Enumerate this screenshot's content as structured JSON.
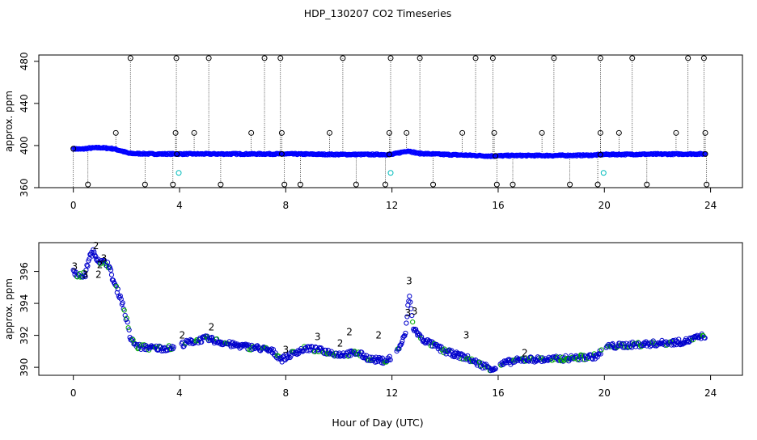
{
  "chart_data": [
    {
      "type": "scatter",
      "title": "HDP_130207  CO2 Timeseries",
      "ylabel": "approx. ppm",
      "xlabel": "",
      "xlim": [
        -1.3,
        25.2
      ],
      "ylim": [
        360,
        486
      ],
      "x_ticks": [
        0,
        4,
        8,
        12,
        16,
        20,
        24
      ],
      "y_ticks": [
        360,
        400,
        440,
        480
      ],
      "colors": {
        "raw": "#000000",
        "corrected": "#0000ff",
        "flagged": "#00bbbb"
      },
      "baseline_trace": [
        {
          "x": 0.0,
          "y": 397
        },
        {
          "x": 0.3,
          "y": 396.5
        },
        {
          "x": 0.6,
          "y": 397.5
        },
        {
          "x": 1.0,
          "y": 398
        },
        {
          "x": 1.5,
          "y": 397
        },
        {
          "x": 1.8,
          "y": 395
        },
        {
          "x": 2.1,
          "y": 392.5
        },
        {
          "x": 3.0,
          "y": 392
        },
        {
          "x": 4.0,
          "y": 392
        },
        {
          "x": 6.0,
          "y": 392
        },
        {
          "x": 8.0,
          "y": 392
        },
        {
          "x": 10.0,
          "y": 391.5
        },
        {
          "x": 12.0,
          "y": 391.5
        },
        {
          "x": 12.6,
          "y": 395
        },
        {
          "x": 13.0,
          "y": 392.5
        },
        {
          "x": 14.0,
          "y": 391.5
        },
        {
          "x": 15.2,
          "y": 390.5
        },
        {
          "x": 15.7,
          "y": 390
        },
        {
          "x": 16.5,
          "y": 390.5
        },
        {
          "x": 18.0,
          "y": 390.5
        },
        {
          "x": 19.5,
          "y": 390.8
        },
        {
          "x": 20.0,
          "y": 391.5
        },
        {
          "x": 22.0,
          "y": 391.8
        },
        {
          "x": 23.8,
          "y": 392
        }
      ],
      "high_spikes": [
        2.15,
        3.88,
        5.1,
        7.2,
        7.8,
        10.15,
        11.95,
        13.05,
        15.15,
        15.8,
        18.1,
        19.85,
        21.05,
        23.15,
        23.75
      ],
      "mid_spikes": [
        1.6,
        3.85,
        4.55,
        6.7,
        7.85,
        9.65,
        11.9,
        12.55,
        14.65,
        15.85,
        17.65,
        19.85,
        20.55,
        22.7,
        23.8
      ],
      "low_spikes": [
        0.55,
        2.7,
        3.75,
        5.55,
        7.95,
        8.55,
        10.65,
        11.75,
        13.55,
        15.95,
        16.55,
        18.7,
        19.75,
        21.6,
        23.85
      ],
      "flagged_points": [
        {
          "x": 3.97,
          "y": 374
        },
        {
          "x": 11.95,
          "y": 374
        },
        {
          "x": 19.97,
          "y": 374
        }
      ]
    },
    {
      "type": "scatter",
      "title": "",
      "ylabel": "approx. ppm",
      "xlabel": "Hour of Day (UTC)",
      "xlim": [
        -1.3,
        25.2
      ],
      "ylim": [
        389.5,
        397.8
      ],
      "x_ticks": [
        0,
        4,
        8,
        12,
        16,
        20,
        24
      ],
      "y_ticks": [
        390,
        392,
        394,
        396
      ],
      "colors": {
        "ring": "#0000cc",
        "label2": "#00aa00",
        "label3": "#0000aa",
        "ring_alt": "#00aa00"
      },
      "trace": [
        {
          "x": 0.0,
          "y": 396.1
        },
        {
          "x": 0.2,
          "y": 395.7
        },
        {
          "x": 0.45,
          "y": 395.8
        },
        {
          "x": 0.6,
          "y": 396.9
        },
        {
          "x": 0.75,
          "y": 397.2
        },
        {
          "x": 1.0,
          "y": 396.6
        },
        {
          "x": 1.3,
          "y": 396.5
        },
        {
          "x": 1.55,
          "y": 395.2
        },
        {
          "x": 1.8,
          "y": 394.3
        },
        {
          "x": 2.0,
          "y": 393.0
        },
        {
          "x": 2.15,
          "y": 391.8
        },
        {
          "x": 2.4,
          "y": 391.3
        },
        {
          "x": 3.0,
          "y": 391.2
        },
        {
          "x": 3.75,
          "y": 391.2
        },
        {
          "x": 4.2,
          "y": 391.5
        },
        {
          "x": 5.0,
          "y": 391.8
        },
        {
          "x": 6.0,
          "y": 391.4
        },
        {
          "x": 7.0,
          "y": 391.2
        },
        {
          "x": 7.5,
          "y": 391.0
        },
        {
          "x": 7.85,
          "y": 390.5
        },
        {
          "x": 8.3,
          "y": 390.9
        },
        {
          "x": 8.8,
          "y": 391.2
        },
        {
          "x": 9.5,
          "y": 391.0
        },
        {
          "x": 10.0,
          "y": 390.8
        },
        {
          "x": 10.7,
          "y": 390.9
        },
        {
          "x": 11.2,
          "y": 390.5
        },
        {
          "x": 11.8,
          "y": 390.4
        },
        {
          "x": 12.2,
          "y": 391.0
        },
        {
          "x": 12.5,
          "y": 392.0
        },
        {
          "x": 12.65,
          "y": 394.6
        },
        {
          "x": 12.8,
          "y": 392.5
        },
        {
          "x": 13.1,
          "y": 391.8
        },
        {
          "x": 14.0,
          "y": 391.0
        },
        {
          "x": 14.8,
          "y": 390.6
        },
        {
          "x": 15.3,
          "y": 390.2
        },
        {
          "x": 15.8,
          "y": 389.9
        },
        {
          "x": 16.3,
          "y": 390.3
        },
        {
          "x": 17.0,
          "y": 390.5
        },
        {
          "x": 18.0,
          "y": 390.5
        },
        {
          "x": 19.0,
          "y": 390.6
        },
        {
          "x": 19.7,
          "y": 390.7
        },
        {
          "x": 20.1,
          "y": 391.3
        },
        {
          "x": 21.0,
          "y": 391.4
        },
        {
          "x": 22.0,
          "y": 391.5
        },
        {
          "x": 23.0,
          "y": 391.6
        },
        {
          "x": 23.8,
          "y": 392.0
        }
      ],
      "labels": [
        {
          "text": "3",
          "kind": "3",
          "x": 0.05,
          "y": 396.1
        },
        {
          "text": "3",
          "kind": "3",
          "x": 0.45,
          "y": 395.6
        },
        {
          "text": "2",
          "kind": "2",
          "x": 0.85,
          "y": 397.4
        },
        {
          "text": "2",
          "kind": "2",
          "x": 1.0,
          "y": 396.2
        },
        {
          "text": "2",
          "kind": "2",
          "x": 0.95,
          "y": 395.6
        },
        {
          "text": "3",
          "kind": "3",
          "x": 1.15,
          "y": 396.6
        },
        {
          "text": "2",
          "kind": "2",
          "x": 4.1,
          "y": 391.8
        },
        {
          "text": "2",
          "kind": "2",
          "x": 5.2,
          "y": 392.3
        },
        {
          "text": "3",
          "kind": "3",
          "x": 8.0,
          "y": 390.9
        },
        {
          "text": "3",
          "kind": "3",
          "x": 9.2,
          "y": 391.7
        },
        {
          "text": "2",
          "kind": "2",
          "x": 10.05,
          "y": 391.3
        },
        {
          "text": "2",
          "kind": "2",
          "x": 10.4,
          "y": 392.0
        },
        {
          "text": "2",
          "kind": "2",
          "x": 11.5,
          "y": 391.8
        },
        {
          "text": "3",
          "kind": "3",
          "x": 12.65,
          "y": 395.2
        },
        {
          "text": "3",
          "kind": "3",
          "x": 12.6,
          "y": 393.2
        },
        {
          "text": "3",
          "kind": "3",
          "x": 12.85,
          "y": 393.3
        },
        {
          "text": "3",
          "kind": "3",
          "x": 14.8,
          "y": 391.8
        },
        {
          "text": "2",
          "kind": "2",
          "x": 17.0,
          "y": 390.7
        }
      ]
    }
  ]
}
